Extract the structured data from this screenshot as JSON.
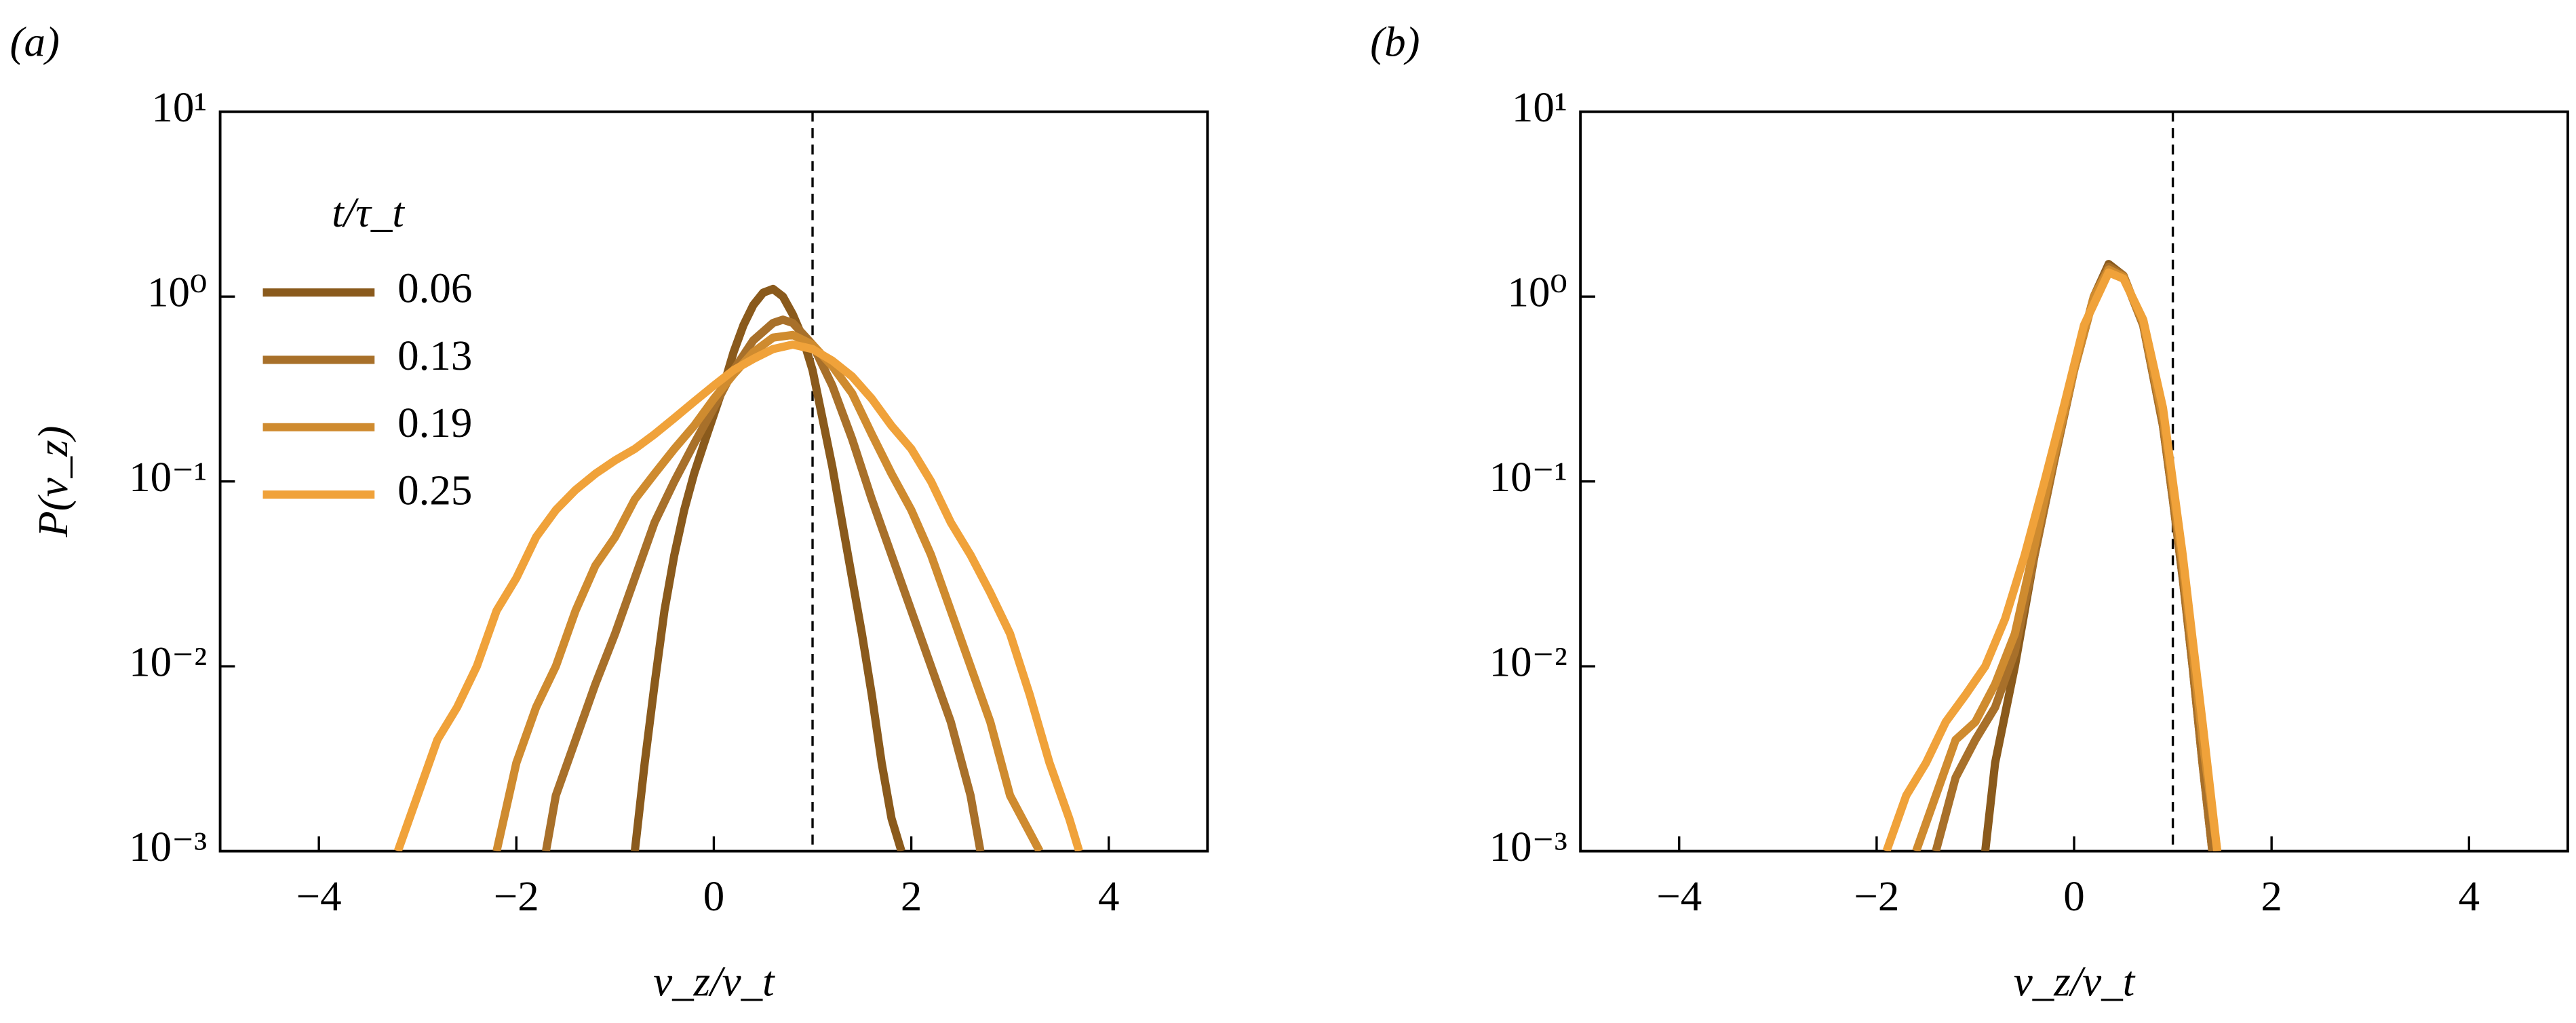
{
  "chart_data": [
    {
      "type": "line",
      "panel_label": "(a)",
      "xlabel": "v_z/v_t",
      "ylabel": "P(v_z)",
      "legend_title": "t/τ_t",
      "log_y": true,
      "reference_line": 1,
      "xlim": [
        -5,
        5
      ],
      "ylim": [
        0.001,
        10
      ],
      "xticks": [
        {
          "value": -4,
          "label": "−4"
        },
        {
          "value": -2,
          "label": "−2"
        },
        0,
        2,
        4
      ],
      "yticks": [
        {
          "value": 0.001,
          "label": "10⁻³"
        },
        {
          "value": 0.01,
          "label": "10⁻²"
        },
        {
          "value": 0.1,
          "label": "10⁻¹"
        },
        {
          "value": 1,
          "label": "10⁰"
        },
        {
          "value": 10,
          "label": "10¹"
        }
      ],
      "series": [
        {
          "name": "0.06",
          "color": "#8a5a1c",
          "x": [
            -0.8,
            -0.7,
            -0.6,
            -0.5,
            -0.4,
            -0.3,
            -0.2,
            -0.1,
            0,
            0.1,
            0.2,
            0.3,
            0.4,
            0.5,
            0.6,
            0.7,
            0.8,
            0.9,
            1.0,
            1.1,
            1.2,
            1.3,
            1.4,
            1.5,
            1.6,
            1.7,
            1.8,
            1.9
          ],
          "values": [
            0.001,
            0.003,
            0.008,
            0.02,
            0.04,
            0.07,
            0.11,
            0.16,
            0.23,
            0.33,
            0.5,
            0.7,
            0.9,
            1.05,
            1.1,
            1.0,
            0.8,
            0.6,
            0.4,
            0.22,
            0.12,
            0.06,
            0.03,
            0.015,
            0.007,
            0.003,
            0.0015,
            0.001
          ]
        },
        {
          "name": "0.13",
          "color": "#a8702a",
          "x": [
            -1.7,
            -1.6,
            -1.4,
            -1.2,
            -1.0,
            -0.8,
            -0.6,
            -0.4,
            -0.2,
            0,
            0.2,
            0.4,
            0.6,
            0.7,
            0.8,
            1.0,
            1.2,
            1.4,
            1.6,
            1.8,
            2.0,
            2.2,
            2.4,
            2.6,
            2.7
          ],
          "values": [
            0.001,
            0.002,
            0.004,
            0.008,
            0.015,
            0.03,
            0.06,
            0.1,
            0.16,
            0.25,
            0.4,
            0.58,
            0.72,
            0.75,
            0.72,
            0.55,
            0.33,
            0.17,
            0.08,
            0.04,
            0.02,
            0.01,
            0.005,
            0.002,
            0.001
          ]
        },
        {
          "name": "0.19",
          "color": "#cf8b2f",
          "x": [
            -2.2,
            -2.0,
            -1.8,
            -1.6,
            -1.4,
            -1.2,
            -1.0,
            -0.8,
            -0.6,
            -0.4,
            -0.2,
            0,
            0.2,
            0.4,
            0.6,
            0.8,
            1.0,
            1.2,
            1.4,
            1.6,
            1.8,
            2.0,
            2.2,
            2.4,
            2.6,
            2.8,
            3.0,
            3.3
          ],
          "values": [
            0.001,
            0.003,
            0.006,
            0.01,
            0.02,
            0.035,
            0.05,
            0.08,
            0.11,
            0.15,
            0.2,
            0.28,
            0.38,
            0.5,
            0.6,
            0.62,
            0.55,
            0.42,
            0.3,
            0.18,
            0.11,
            0.07,
            0.04,
            0.02,
            0.01,
            0.005,
            0.002,
            0.001
          ]
        },
        {
          "name": "0.25",
          "color": "#f0a23a",
          "x": [
            -3.2,
            -3.0,
            -2.8,
            -2.6,
            -2.4,
            -2.2,
            -2.0,
            -1.8,
            -1.6,
            -1.4,
            -1.2,
            -1.0,
            -0.8,
            -0.6,
            -0.4,
            -0.2,
            0,
            0.2,
            0.4,
            0.6,
            0.8,
            1.0,
            1.2,
            1.4,
            1.6,
            1.8,
            2.0,
            2.2,
            2.4,
            2.6,
            2.8,
            3.0,
            3.2,
            3.4,
            3.6,
            3.7
          ],
          "values": [
            0.001,
            0.002,
            0.004,
            0.006,
            0.01,
            0.02,
            0.03,
            0.05,
            0.07,
            0.09,
            0.11,
            0.13,
            0.15,
            0.18,
            0.22,
            0.27,
            0.33,
            0.4,
            0.46,
            0.52,
            0.55,
            0.52,
            0.45,
            0.37,
            0.28,
            0.2,
            0.15,
            0.1,
            0.06,
            0.04,
            0.025,
            0.015,
            0.007,
            0.003,
            0.0015,
            0.001
          ]
        }
      ]
    },
    {
      "type": "line",
      "panel_label": "(b)",
      "xlabel": "v_z/v_t",
      "log_y": true,
      "reference_line": 1,
      "xlim": [
        -5,
        5
      ],
      "ylim": [
        0.001,
        10
      ],
      "xticks": [
        {
          "value": -4,
          "label": "−4"
        },
        {
          "value": -2,
          "label": "−2"
        },
        0,
        2,
        4
      ],
      "yticks": [
        {
          "value": 0.001,
          "label": "10⁻³"
        },
        {
          "value": 0.01,
          "label": "10⁻²"
        },
        {
          "value": 0.1,
          "label": "10⁻¹"
        },
        {
          "value": 1,
          "label": "10⁰"
        },
        {
          "value": 10,
          "label": "10¹"
        }
      ],
      "series": [
        {
          "name": "0.06",
          "color": "#8a5a1c",
          "x": [
            -0.9,
            -0.8,
            -0.6,
            -0.4,
            -0.2,
            0,
            0.2,
            0.35,
            0.5,
            0.7,
            0.9,
            1.0,
            1.1,
            1.2,
            1.3,
            1.4
          ],
          "values": [
            0.001,
            0.003,
            0.01,
            0.04,
            0.13,
            0.4,
            1.0,
            1.5,
            1.3,
            0.7,
            0.2,
            0.08,
            0.03,
            0.01,
            0.003,
            0.001
          ]
        },
        {
          "name": "0.13",
          "color": "#a8702a",
          "x": [
            -1.4,
            -1.2,
            -1.0,
            -0.8,
            -0.6,
            -0.4,
            -0.2,
            0,
            0.2,
            0.35,
            0.5,
            0.7,
            0.9,
            1.0,
            1.1,
            1.2,
            1.3,
            1.4
          ],
          "values": [
            0.001,
            0.0025,
            0.004,
            0.006,
            0.012,
            0.04,
            0.13,
            0.4,
            1.0,
            1.45,
            1.3,
            0.7,
            0.2,
            0.08,
            0.03,
            0.01,
            0.003,
            0.001
          ]
        },
        {
          "name": "0.19",
          "color": "#cf8b2f",
          "x": [
            -1.6,
            -1.4,
            -1.2,
            -1.0,
            -0.8,
            -0.6,
            -0.4,
            -0.2,
            0,
            0.2,
            0.35,
            0.5,
            0.7,
            0.9,
            1.0,
            1.1,
            1.2,
            1.3,
            1.45
          ],
          "values": [
            0.001,
            0.002,
            0.004,
            0.005,
            0.008,
            0.015,
            0.045,
            0.14,
            0.4,
            1.0,
            1.4,
            1.28,
            0.72,
            0.22,
            0.09,
            0.035,
            0.012,
            0.004,
            0.001
          ]
        },
        {
          "name": "0.25",
          "color": "#f0a23a",
          "x": [
            -1.9,
            -1.7,
            -1.5,
            -1.3,
            -1.1,
            -0.9,
            -0.7,
            -0.5,
            -0.3,
            -0.1,
            0.1,
            0.35,
            0.5,
            0.7,
            0.9,
            1.0,
            1.1,
            1.2,
            1.3,
            1.45
          ],
          "values": [
            0.001,
            0.002,
            0.003,
            0.005,
            0.007,
            0.01,
            0.018,
            0.04,
            0.1,
            0.26,
            0.7,
            1.35,
            1.25,
            0.75,
            0.25,
            0.1,
            0.04,
            0.014,
            0.005,
            0.001
          ]
        }
      ]
    }
  ]
}
